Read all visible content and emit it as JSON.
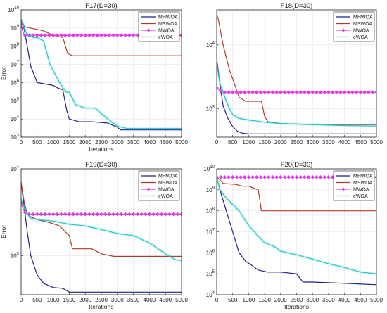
{
  "chart_data": [
    {
      "type": "line",
      "title": "F17(D=30)",
      "xlabel": "Iterations",
      "ylabel": "Error",
      "xlim": [
        0,
        5000
      ],
      "yscale": "log",
      "ylim_log10": [
        3,
        10
      ],
      "yticks": [
        {
          "exp": 10,
          "label_exp": "10"
        },
        {
          "exp": 9,
          "label_exp": "9"
        },
        {
          "exp": 8,
          "label_exp": "8"
        },
        {
          "exp": 7,
          "label_exp": "7"
        },
        {
          "exp": 6,
          "label_exp": "6"
        },
        {
          "exp": 5,
          "label_exp": "5"
        },
        {
          "exp": 4,
          "label_exp": "4"
        },
        {
          "exp": 3,
          "label_exp": "3"
        }
      ],
      "xticks": [
        "0",
        "500",
        "1000",
        "1500",
        "2000",
        "2500",
        "3000",
        "3500",
        "4000",
        "4500",
        "5000"
      ],
      "grid": true,
      "legend_position": "top-right",
      "series": [
        {
          "name": "MHWOA",
          "color": "#1f1f8a",
          "x": [
            0,
            100,
            300,
            500,
            1000,
            1150,
            1300,
            1420,
            1500,
            1800,
            2200,
            2700,
            3000,
            3100,
            5000
          ],
          "y": [
            3000000000.0,
            800000000.0,
            8000000.0,
            1000000.0,
            700000.0,
            500000.0,
            400000.0,
            30000.0,
            10000.0,
            7000.0,
            7000.0,
            6000.0,
            3500.0,
            2500.0,
            2500.0
          ]
        },
        {
          "name": "MSWOA",
          "color": "#b03a2e",
          "x": [
            0,
            100,
            300,
            700,
            1000,
            1300,
            1450,
            1600,
            5000
          ],
          "y": [
            3000000000.0,
            1200000000.0,
            1000000000.0,
            700000000.0,
            400000000.0,
            300000000.0,
            40000000.0,
            30000000.0,
            30000000.0
          ]
        },
        {
          "name": "MWOA",
          "color": "#e13ce6",
          "marker": "diamond",
          "x": [
            0,
            50,
            100,
            5000
          ],
          "y": [
            1500000000.0,
            700000000.0,
            400000000.0,
            400000000.0
          ]
        },
        {
          "name": "eWOA",
          "color": "#26c6c6",
          "x": [
            0,
            100,
            200,
            400,
            500,
            700,
            900,
            1200,
            1400,
            1500,
            1700,
            2000,
            2300,
            2500,
            2700,
            3000,
            3300,
            5000
          ],
          "y": [
            3000000000.0,
            1000000000.0,
            400000000.0,
            300000000.0,
            300000000.0,
            200000000.0,
            10000000.0,
            1000000.0,
            300000.0,
            300000.0,
            60000.0,
            40000.0,
            40000.0,
            20000.0,
            10000.0,
            4000.0,
            3000.0,
            3000.0
          ]
        }
      ]
    },
    {
      "type": "line",
      "title": "F18(D=30)",
      "xlabel": "",
      "ylabel": "",
      "xlim": [
        0,
        5000
      ],
      "yscale": "log",
      "ylim_log10": [
        2.55,
        4.55
      ],
      "yticks": [
        {
          "exp": 4,
          "label_exp": "4"
        },
        {
          "exp": 3,
          "label_exp": "3"
        }
      ],
      "xticks": [
        "0",
        "500",
        "1000",
        "1500",
        "2000",
        "2500",
        "3000",
        "3500",
        "4000",
        "4500",
        "5000"
      ],
      "grid": true,
      "legend_position": "top-right",
      "series": [
        {
          "name": "MHWOA",
          "color": "#1f1f8a",
          "x": [
            0,
            100,
            200,
            350,
            500,
            650,
            800,
            1000,
            5000
          ],
          "y": [
            6000,
            2500,
            1100,
            700,
            520,
            440,
            410,
            400,
            400
          ]
        },
        {
          "name": "MSWOA",
          "color": "#b03a2e",
          "x": [
            0,
            50,
            200,
            400,
            550,
            700,
            900,
            1200,
            1400,
            1500,
            1600,
            2000,
            3000,
            4000,
            5000
          ],
          "y": [
            30000,
            25000,
            10000,
            4000,
            2500,
            1500,
            1300,
            1300,
            1300,
            750,
            620,
            580,
            560,
            560,
            560
          ]
        },
        {
          "name": "MWOA",
          "color": "#e13ce6",
          "marker": "diamond",
          "x": [
            0,
            100,
            200,
            5000
          ],
          "y": [
            2100,
            1900,
            1800,
            1800
          ]
        },
        {
          "name": "eWOA",
          "color": "#26c6c6",
          "x": [
            0,
            100,
            200,
            300,
            400,
            500,
            700,
            1000,
            1500,
            2000,
            3000,
            4000,
            5000
          ],
          "y": [
            5000,
            2500,
            1800,
            1300,
            1000,
            800,
            700,
            660,
            610,
            580,
            560,
            540,
            530
          ]
        }
      ]
    },
    {
      "type": "line",
      "title": "F19(D=30)",
      "xlabel": "Iterations",
      "ylabel": "Error",
      "xlim": [
        0,
        5000
      ],
      "yscale": "log",
      "ylim_log10": [
        2.55,
        4.0
      ],
      "yticks": [
        {
          "exp": 4,
          "label_exp": "4"
        },
        {
          "exp": 3,
          "label_exp": "3"
        }
      ],
      "xticks": [
        "0",
        "500",
        "1000",
        "1500",
        "2000",
        "2500",
        "3000",
        "3500",
        "4000",
        "4500",
        "5000"
      ],
      "grid": true,
      "legend_position": "top-right",
      "series": [
        {
          "name": "MHWOA",
          "color": "#1f1f8a",
          "x": [
            0,
            100,
            200,
            300,
            500,
            700,
            1000,
            1300,
            1500,
            5000
          ],
          "y": [
            7000,
            3500,
            1800,
            1000,
            600,
            480,
            430,
            420,
            380,
            380
          ]
        },
        {
          "name": "MSWOA",
          "color": "#b03a2e",
          "x": [
            0,
            100,
            200,
            300,
            500,
            900,
            1200,
            1500,
            1600,
            2200,
            2500,
            2900,
            5000
          ],
          "y": [
            7000,
            4000,
            3000,
            2800,
            2600,
            2400,
            2200,
            1700,
            1200,
            1200,
            1050,
            980,
            980
          ]
        },
        {
          "name": "MWOA",
          "color": "#e13ce6",
          "marker": "diamond",
          "x": [
            0,
            100,
            200,
            5000
          ],
          "y": [
            4000,
            3200,
            3000,
            3000
          ]
        },
        {
          "name": "eWOA",
          "color": "#26c6c6",
          "x": [
            0,
            100,
            200,
            300,
            500,
            1000,
            1500,
            2000,
            2500,
            3000,
            3500,
            4000,
            4500,
            4800,
            5000
          ],
          "y": [
            4500,
            3500,
            3000,
            2700,
            2600,
            2500,
            2300,
            2200,
            2000,
            1800,
            1700,
            1400,
            1050,
            900,
            880
          ]
        }
      ]
    },
    {
      "type": "line",
      "title": "F20(D=30)",
      "xlabel": "Iterations",
      "ylabel": "",
      "xlim": [
        0,
        5000
      ],
      "yscale": "log",
      "ylim_log10": [
        4,
        10
      ],
      "yticks": [
        {
          "exp": 10,
          "label_exp": "10"
        },
        {
          "exp": 9,
          "label_exp": "9"
        },
        {
          "exp": 8,
          "label_exp": "8"
        },
        {
          "exp": 7,
          "label_exp": "7"
        },
        {
          "exp": 6,
          "label_exp": "6"
        },
        {
          "exp": 5,
          "label_exp": "5"
        },
        {
          "exp": 4,
          "label_exp": "4"
        }
      ],
      "xticks": [
        "0",
        "500",
        "1000",
        "1500",
        "2000",
        "2500",
        "3000",
        "3500",
        "4000",
        "4500",
        "5000"
      ],
      "grid": true,
      "legend_position": "top-right",
      "series": [
        {
          "name": "MHWOA",
          "color": "#1f1f8a",
          "x": [
            0,
            100,
            300,
            500,
            700,
            900,
            1100,
            1300,
            1600,
            2000,
            2500,
            2700,
            3000,
            4000,
            5000
          ],
          "y": [
            4000000000.0,
            1000000000.0,
            100000000.0,
            10000000.0,
            1000000.0,
            400000.0,
            250000.0,
            150000.0,
            120000.0,
            120000.0,
            100000.0,
            40000.0,
            40000.0,
            35000.0,
            30000.0
          ]
        },
        {
          "name": "MSWOA",
          "color": "#b03a2e",
          "x": [
            0,
            100,
            200,
            600,
            800,
            1000,
            1300,
            1400,
            5000
          ],
          "y": [
            4000000000.0,
            3000000000.0,
            2000000000.0,
            1800000000.0,
            1500000000.0,
            1500000000.0,
            1000000000.0,
            100000000.0,
            100000000.0
          ]
        },
        {
          "name": "MWOA",
          "color": "#e13ce6",
          "marker": "diamond",
          "x": [
            0,
            5000
          ],
          "y": [
            4000000000.0,
            4000000000.0
          ]
        },
        {
          "name": "eWOA",
          "color": "#26c6c6",
          "x": [
            0,
            100,
            300,
            500,
            700,
            1000,
            1300,
            1500,
            1800,
            2000,
            2500,
            3000,
            3500,
            4000,
            4500,
            5000
          ],
          "y": [
            4000000000.0,
            1000000000.0,
            400000000.0,
            200000000.0,
            100000000.0,
            20000000.0,
            6000000.0,
            3000000.0,
            2000000.0,
            1200000.0,
            800000.0,
            500000.0,
            300000.0,
            200000.0,
            120000.0,
            100000.0
          ]
        }
      ]
    }
  ]
}
